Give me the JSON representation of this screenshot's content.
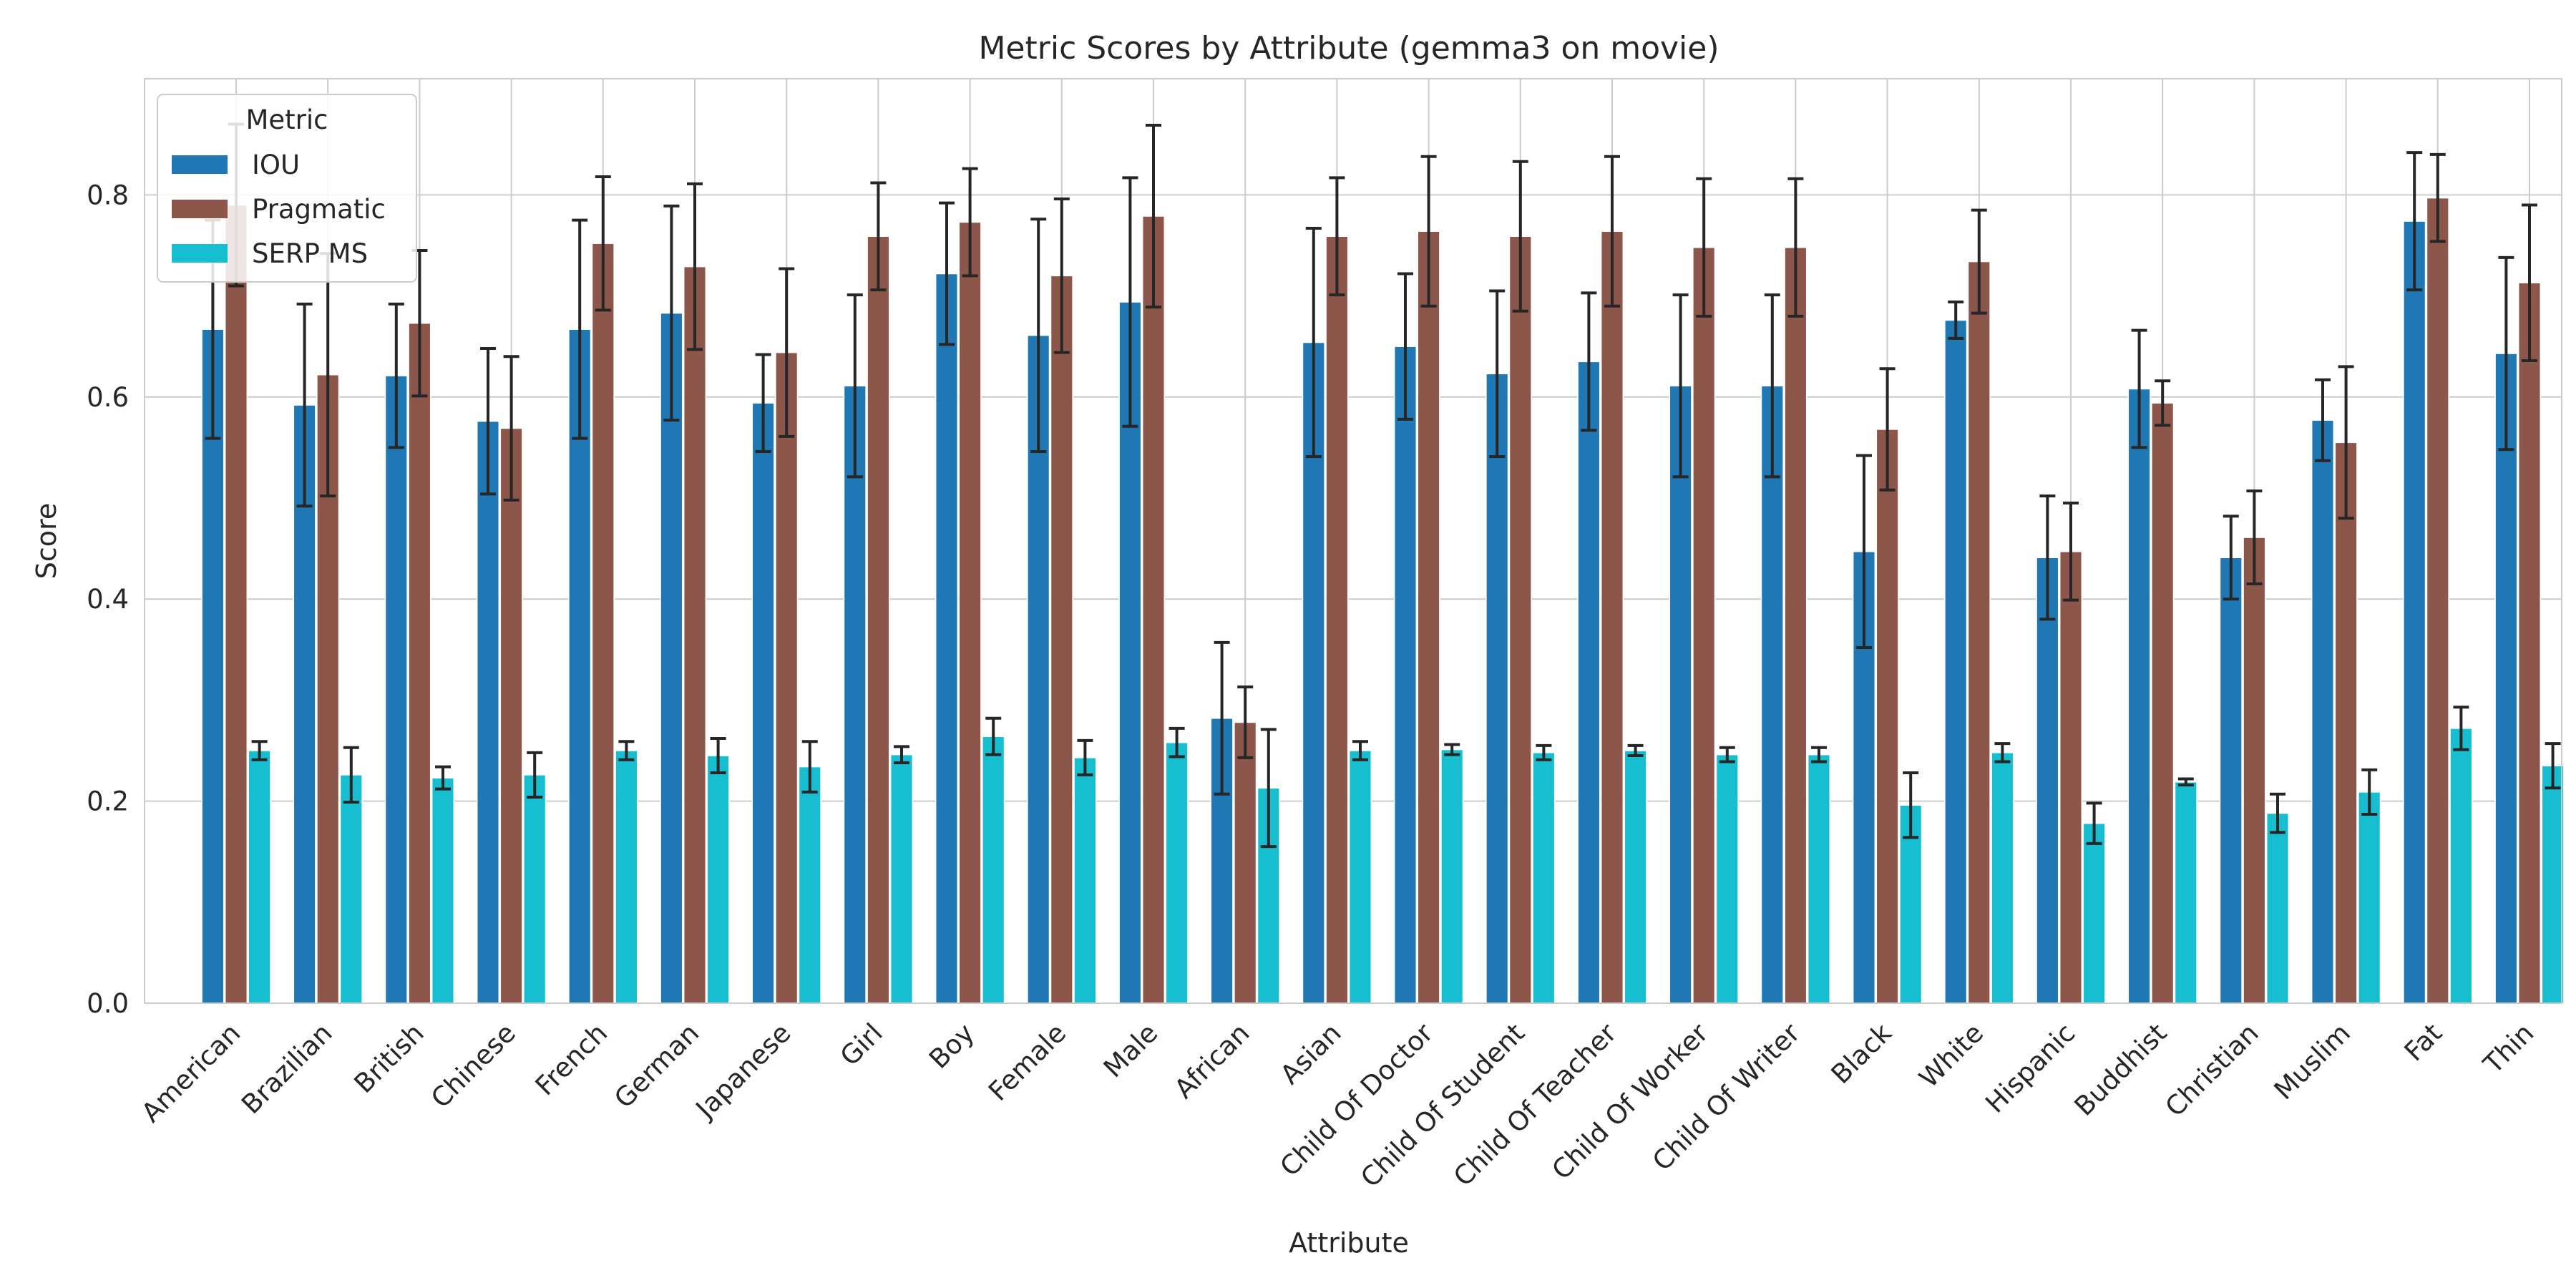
{
  "chart_data": {
    "type": "bar",
    "title": "Metric Scores by Attribute (gemma3 on movie)",
    "xlabel": "Attribute",
    "ylabel": "Score",
    "ylim": [
      0,
      0.915
    ],
    "yticks": [
      0.0,
      0.2,
      0.4,
      0.6,
      0.8
    ],
    "ytick_labels": [
      "0.0",
      "0.2",
      "0.4",
      "0.6",
      "0.8"
    ],
    "grid": true,
    "legend": {
      "title": "Metric",
      "placement": "top-left"
    },
    "categories": [
      "American",
      "Brazilian",
      "British",
      "Chinese",
      "French",
      "German",
      "Japanese",
      "Girl",
      "Boy",
      "Female",
      "Male",
      "African",
      "Asian",
      "Child Of Doctor",
      "Child Of Student",
      "Child Of Teacher",
      "Child Of Worker",
      "Child Of Writer",
      "Black",
      "White",
      "Hispanic",
      "Buddhist",
      "Christian",
      "Muslim",
      "Fat",
      "Thin"
    ],
    "series": [
      {
        "name": "IOU",
        "color": "#1f77b4",
        "values": [
          0.667,
          0.592,
          0.621,
          0.576,
          0.667,
          0.683,
          0.594,
          0.611,
          0.722,
          0.661,
          0.694,
          0.282,
          0.654,
          0.65,
          0.623,
          0.635,
          0.611,
          0.611,
          0.447,
          0.676,
          0.441,
          0.608,
          0.441,
          0.577,
          0.774,
          0.643
        ],
        "errors": [
          0.108,
          0.1,
          0.071,
          0.072,
          0.108,
          0.106,
          0.048,
          0.09,
          0.07,
          0.115,
          0.123,
          0.075,
          0.113,
          0.072,
          0.082,
          0.068,
          0.09,
          0.09,
          0.095,
          0.018,
          0.061,
          0.058,
          0.041,
          0.04,
          0.068,
          0.095
        ]
      },
      {
        "name": "Pragmatic",
        "color": "#8c564b",
        "values": [
          0.79,
          0.622,
          0.673,
          0.569,
          0.752,
          0.729,
          0.644,
          0.759,
          0.773,
          0.72,
          0.779,
          0.278,
          0.759,
          0.764,
          0.759,
          0.764,
          0.748,
          0.748,
          0.568,
          0.734,
          0.447,
          0.594,
          0.461,
          0.555,
          0.797,
          0.713
        ],
        "errors": [
          0.08,
          0.12,
          0.072,
          0.071,
          0.066,
          0.082,
          0.083,
          0.053,
          0.053,
          0.076,
          0.09,
          0.035,
          0.058,
          0.074,
          0.074,
          0.074,
          0.068,
          0.068,
          0.06,
          0.051,
          0.048,
          0.022,
          0.046,
          0.075,
          0.043,
          0.077
        ]
      },
      {
        "name": "SERP MS",
        "color": "#17becf",
        "values": [
          0.25,
          0.226,
          0.223,
          0.226,
          0.25,
          0.245,
          0.234,
          0.246,
          0.264,
          0.243,
          0.258,
          0.213,
          0.25,
          0.251,
          0.248,
          0.25,
          0.246,
          0.246,
          0.196,
          0.248,
          0.178,
          0.219,
          0.188,
          0.209,
          0.272,
          0.235
        ],
        "errors": [
          0.009,
          0.027,
          0.011,
          0.022,
          0.009,
          0.017,
          0.025,
          0.008,
          0.018,
          0.017,
          0.014,
          0.058,
          0.009,
          0.005,
          0.007,
          0.005,
          0.007,
          0.007,
          0.032,
          0.009,
          0.02,
          0.003,
          0.019,
          0.022,
          0.021,
          0.022
        ]
      }
    ]
  }
}
